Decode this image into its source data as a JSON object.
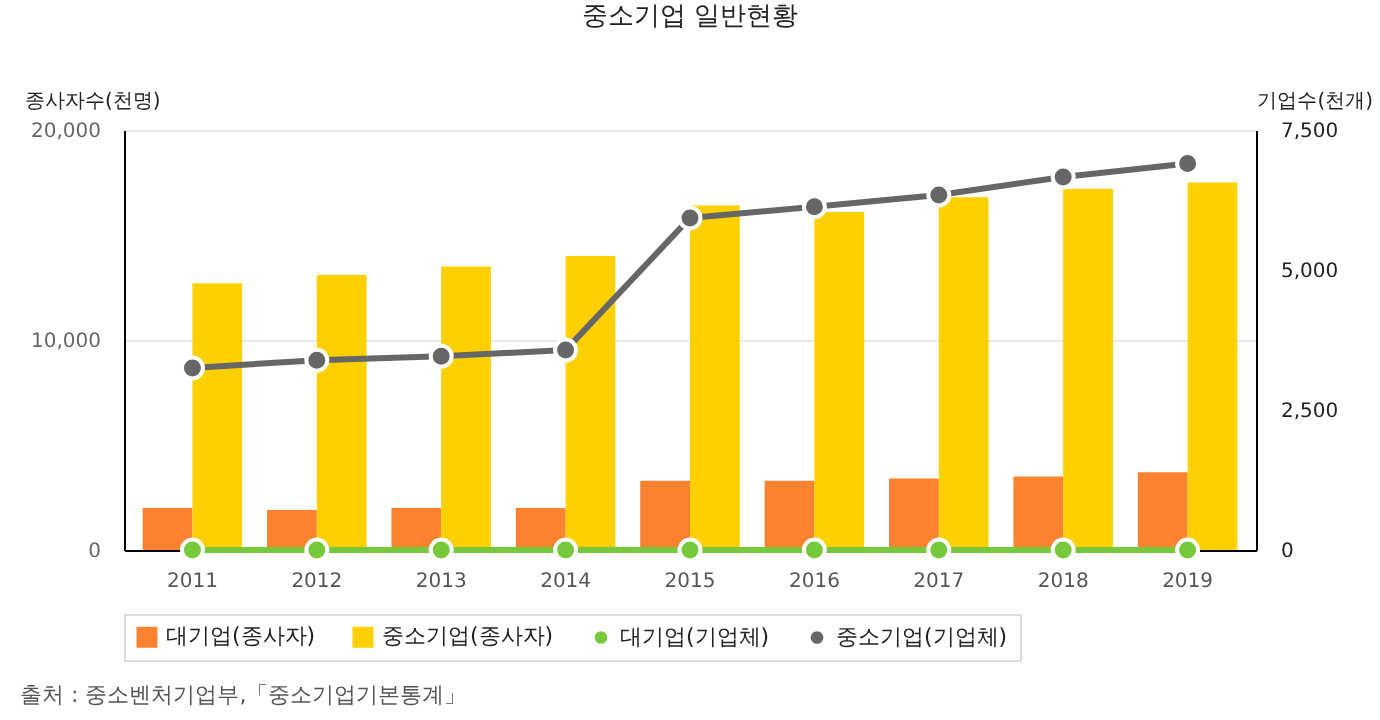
{
  "chart_data": {
    "type": "bar",
    "title": "중소기업 일반현황",
    "ylabel": "종사자수(천명)",
    "y2label": "기업수(천개)",
    "categories": [
      "2011",
      "2012",
      "2013",
      "2014",
      "2015",
      "2016",
      "2017",
      "2018",
      "2019"
    ],
    "series": [
      {
        "name": "대기업(종사자)",
        "color": "#fd8230",
        "values": [
          2000,
          1900,
          2000,
          2000,
          3300,
          3300,
          3400,
          3500,
          3700
        ]
      },
      {
        "name": "중소기업(종사자)",
        "color": "#ffd000",
        "values": [
          12700,
          13100,
          13500,
          14000,
          16400,
          16100,
          16800,
          17200,
          17500
        ]
      },
      {
        "name": "대기업(기업체)",
        "type": "line",
        "axis": "y2",
        "color": "#77c93b",
        "values": [
          0,
          0,
          0,
          0,
          0,
          0,
          0,
          0,
          0
        ]
      },
      {
        "name": "중소기업(기업체)",
        "type": "line",
        "axis": "y2",
        "color": "#666666",
        "values": [
          3250,
          3390,
          3460,
          3570,
          5930,
          6130,
          6340,
          6660,
          6900
        ]
      }
    ],
    "ylim": [
      0,
      20000
    ],
    "yticks": [
      0,
      {
        "value": 10000,
        "label": "10,000"
      },
      {
        "value": 20000,
        "label": "20,000"
      }
    ],
    "y2lim": [
      0,
      7500
    ],
    "y2ticks": [
      0,
      {
        "value": 2500,
        "label": "2,500"
      },
      {
        "value": 5000,
        "label": "5,000"
      },
      {
        "value": 7500,
        "label": "7,500"
      }
    ],
    "grid": "y",
    "legend": "bottom",
    "marker": "circle",
    "line_style": "solid",
    "annotations": [
      "출처 : 중소벤처기업부,「중소기업기본통계」"
    ]
  }
}
